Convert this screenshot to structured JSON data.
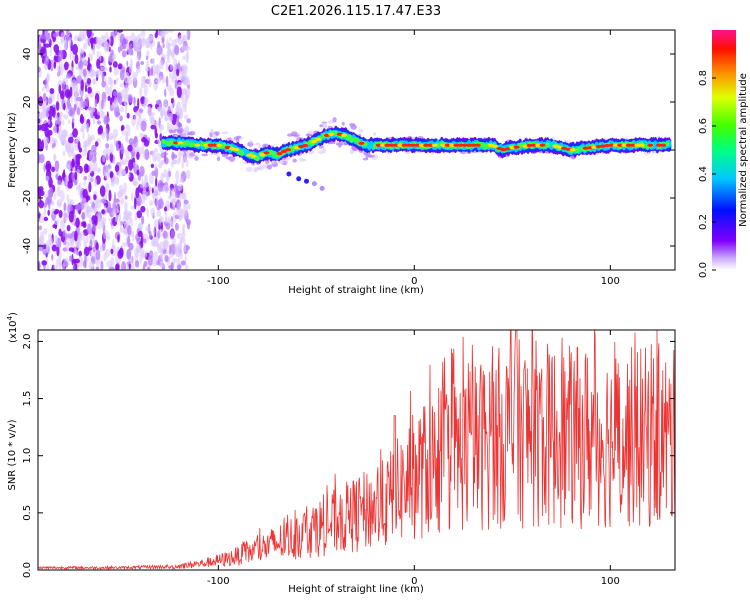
{
  "chart_data": [
    {
      "type": "heatmap",
      "title": "C2E1.2026.115.17.47.E33",
      "xlabel": "Height of straight line (km)",
      "ylabel": "Frequency (Hz)",
      "xlim": [
        -192,
        133
      ],
      "ylim": [
        -50,
        50
      ],
      "x_ticks": [
        -100,
        0,
        100
      ],
      "x_tick_labels": [
        "-100",
        "0",
        "100"
      ],
      "y_ticks": [
        -40,
        -20,
        0,
        20,
        40
      ],
      "y_tick_labels": [
        "-40",
        "-20",
        "0",
        "20",
        "40"
      ],
      "noise_region_x": [
        -192,
        -115
      ],
      "doppler_trace": {
        "x": [
          -128,
          -120,
          -110,
          -100,
          -95,
          -90,
          -85,
          -80,
          -75,
          -70,
          -65,
          -60,
          -55,
          -50,
          -45,
          -40,
          -35,
          -30,
          -25,
          -20,
          -15,
          -10,
          -5,
          0,
          10,
          20,
          30,
          40,
          45,
          50,
          60,
          70,
          80,
          90,
          100,
          110,
          120,
          130
        ],
        "y": [
          3,
          3,
          2,
          2,
          1,
          0,
          -2,
          -3,
          -1,
          -2,
          0,
          1,
          2,
          4,
          6,
          7,
          6,
          4,
          2,
          2,
          2,
          2,
          2,
          2,
          2,
          2,
          2,
          2,
          0,
          1,
          2,
          2,
          0,
          1,
          2,
          2,
          2,
          2
        ]
      },
      "echo_tail": {
        "x": [
          -64,
          -59,
          -55,
          -51,
          -47
        ],
        "y": [
          -10,
          -12,
          -13,
          -14,
          -16
        ]
      },
      "colorbar": {
        "label": "Normalized spectral amplitude",
        "range": [
          0,
          1
        ],
        "ticks": [
          0.0,
          0.2,
          0.4,
          0.6,
          0.8
        ],
        "tick_labels": [
          "0.0",
          "0.2",
          "0.4",
          "0.6",
          "0.8"
        ]
      }
    },
    {
      "type": "line",
      "xlabel": "Height of straight line (km)",
      "ylabel": "SNR (10 * v/v)",
      "exponent_label": "(x10",
      "exponent_value": "4",
      "exponent_close": ")",
      "xlim": [
        -192,
        133
      ],
      "ylim": [
        0,
        2.1
      ],
      "x_ticks": [
        -100,
        0,
        100
      ],
      "x_tick_labels": [
        "-100",
        "0",
        "100"
      ],
      "y_ticks": [
        0.0,
        0.5,
        1.0,
        1.5,
        2.0
      ],
      "y_tick_labels": [
        "0.0",
        "0.5",
        "1.0",
        "1.5",
        "2.0"
      ],
      "color": "#ee3333",
      "series": [
        {
          "name": "SNR",
          "envelope_x": [
            -192,
            -150,
            -125,
            -115,
            -105,
            -95,
            -85,
            -75,
            -65,
            -55,
            -45,
            -35,
            -25,
            -15,
            -10,
            -5,
            0,
            10,
            20,
            30,
            40,
            50,
            60,
            70,
            80,
            90,
            100,
            110,
            120,
            133
          ],
          "envelope_y": [
            0.02,
            0.02,
            0.03,
            0.05,
            0.08,
            0.12,
            0.18,
            0.25,
            0.32,
            0.4,
            0.48,
            0.55,
            0.62,
            0.7,
            0.8,
            0.9,
            1.0,
            1.12,
            1.22,
            1.3,
            1.38,
            1.45,
            1.45,
            1.42,
            1.4,
            1.42,
            1.4,
            1.4,
            1.4,
            1.38
          ],
          "peak_x": -10,
          "peak_value": 1.35,
          "global_peak_x": 52,
          "global_peak_value": 2.1
        }
      ]
    }
  ]
}
